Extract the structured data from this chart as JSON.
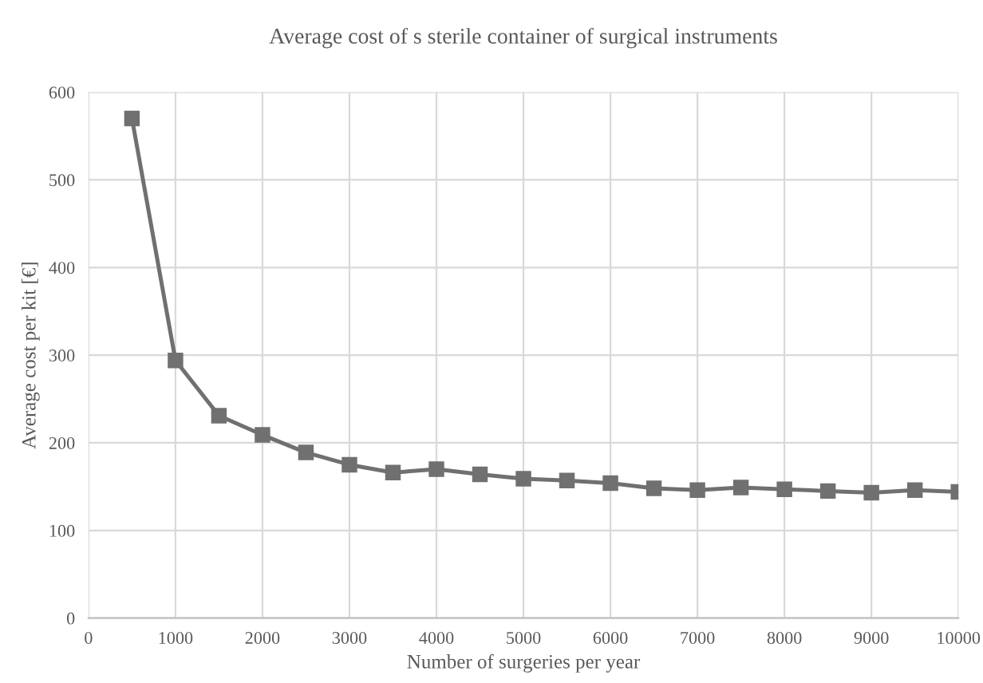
{
  "chart_data": {
    "type": "line",
    "title": "Average cost of s sterile container of surgical instruments",
    "xlabel": "Number of surgeries per year",
    "ylabel": "Average cost per kit [€]",
    "x": [
      500,
      1000,
      1500,
      2000,
      2500,
      3000,
      3500,
      4000,
      4500,
      5000,
      5500,
      6000,
      6500,
      7000,
      7500,
      8000,
      8500,
      9000,
      9500,
      10000
    ],
    "series": [
      {
        "color": "#707070",
        "values": [
          570,
          294,
          231,
          209,
          189,
          175,
          166,
          170,
          164,
          159,
          157,
          154,
          148,
          146,
          149,
          147,
          145,
          143,
          146,
          144
        ]
      }
    ],
    "xlim": [
      0,
      10000
    ],
    "xticks": [
      0,
      1000,
      2000,
      3000,
      4000,
      5000,
      6000,
      7000,
      8000,
      9000,
      10000
    ],
    "ylim": [
      0,
      600
    ],
    "yticks": [
      0,
      100,
      200,
      300,
      400,
      500,
      600
    ],
    "grid": true,
    "marker": "square",
    "line_style": "solid"
  }
}
